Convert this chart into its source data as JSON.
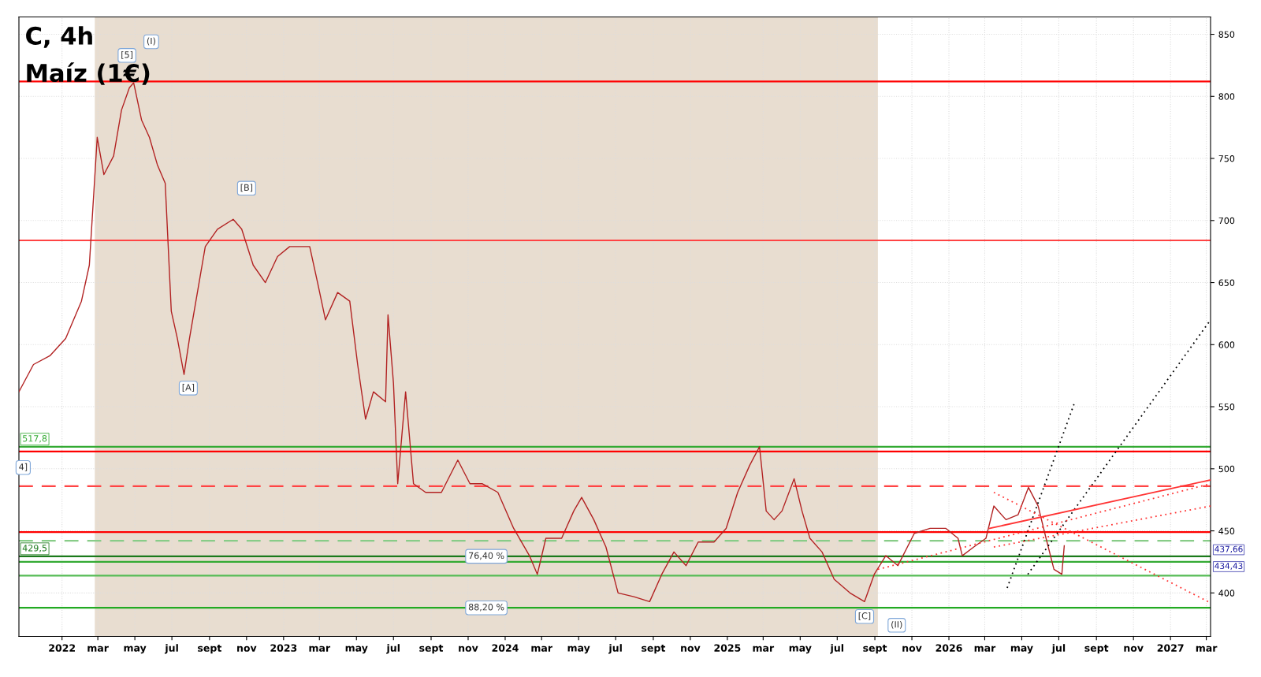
{
  "chart_data": {
    "type": "line",
    "title": "C, 4h",
    "subtitle": "Maíz (1€)",
    "x": [
      "2021-10-22",
      "2021-11-15",
      "2021-12-12",
      "2022-01-07",
      "2022-02-02",
      "2022-02-15",
      "2022-02-28",
      "2022-03-11",
      "2022-03-27",
      "2022-04-09",
      "2022-04-22",
      "2022-04-29",
      "2022-05-12",
      "2022-05-25",
      "2022-06-07",
      "2022-06-20",
      "2022-06-30",
      "2022-07-10",
      "2022-07-21",
      "2022-07-30",
      "2022-08-12",
      "2022-08-25",
      "2022-09-14",
      "2022-10-10",
      "2022-10-24",
      "2022-11-12",
      "2022-12-02",
      "2022-12-22",
      "2023-01-11",
      "2023-02-13",
      "2023-02-26",
      "2023-03-11",
      "2023-03-31",
      "2023-04-20",
      "2023-05-03",
      "2023-05-16",
      "2023-05-29",
      "2023-06-18",
      "2023-06-22",
      "2023-07-01",
      "2023-07-08",
      "2023-07-21",
      "2023-08-03",
      "2023-08-23",
      "2023-09-18",
      "2023-10-15",
      "2023-11-04",
      "2023-11-24",
      "2023-12-20",
      "2024-01-15",
      "2024-02-10",
      "2024-02-23",
      "2024-03-08",
      "2024-04-03",
      "2024-04-23",
      "2024-05-06",
      "2024-05-26",
      "2024-06-15",
      "2024-07-05",
      "2024-07-31",
      "2024-08-26",
      "2024-09-15",
      "2024-10-05",
      "2024-10-25",
      "2024-11-14",
      "2024-12-10",
      "2024-12-30",
      "2025-01-18",
      "2025-02-07",
      "2025-02-23",
      "2025-03-06",
      "2025-03-19",
      "2025-04-01",
      "2025-04-21",
      "2025-05-04",
      "2025-05-17",
      "2025-06-06",
      "2025-06-26",
      "2025-07-22",
      "2025-08-15",
      "2025-08-31",
      "2025-09-19",
      "2025-10-09",
      "2025-11-05",
      "2025-12-01",
      "2025-12-27",
      "2026-01-16",
      "2026-01-23",
      "2026-02-11",
      "2026-03-03",
      "2026-03-16",
      "2026-04-05",
      "2026-04-25",
      "2026-05-12",
      "2026-05-28",
      "2026-06-10",
      "2026-06-23",
      "2026-07-06",
      "2026-07-10"
    ],
    "series": [
      {
        "color": "#b22222",
        "values": [
          562,
          584,
          591,
          605,
          635,
          664,
          767,
          737,
          752,
          789,
          807,
          811,
          781,
          767,
          745,
          730,
          627,
          605,
          576,
          605,
          642,
          679,
          693,
          701,
          693,
          664,
          650,
          671,
          679,
          679,
          650,
          620,
          642,
          635,
          584,
          540,
          562,
          554,
          624,
          569,
          488,
          562,
          488,
          481,
          481,
          507,
          488,
          488,
          481,
          452,
          430,
          415,
          444,
          444,
          466,
          477,
          459,
          437,
          400,
          397,
          393,
          415,
          433,
          422,
          441,
          441,
          452,
          481,
          503,
          517.8,
          466,
          459,
          466,
          492,
          466,
          444,
          433,
          411,
          400,
          393,
          415,
          430,
          422,
          448,
          452,
          452,
          444,
          430,
          437,
          444,
          470,
          459,
          463,
          485,
          470,
          444,
          419,
          415,
          438
        ]
      },
      {
        "type": "line",
        "color": "#000000",
        "line_style": "dotted",
        "x": [
          "2026-04-07",
          "2026-07-26"
        ],
        "values": [
          404,
          552
        ]
      },
      {
        "type": "line",
        "color": "#000000",
        "line_style": "dotted",
        "x": [
          "2026-05-11",
          "2027-03-08"
        ],
        "values": [
          415,
          620
        ]
      },
      {
        "type": "line",
        "color": "#ff3333",
        "line_style": "solid",
        "x": [
          "2026-03-09",
          "2027-03-08"
        ],
        "values": [
          452,
          491
        ]
      },
      {
        "type": "line",
        "color": "#ff3333",
        "line_style": "dotted",
        "x": [
          "2026-03-16",
          "2027-03-08"
        ],
        "values": [
          481,
          392
        ]
      },
      {
        "type": "line",
        "color": "#ff3333",
        "line_style": "dotted",
        "x": [
          "2025-09-06",
          "2027-03-08"
        ],
        "values": [
          419,
          488
        ]
      },
      {
        "type": "line",
        "color": "#ff3333",
        "line_style": "dotted",
        "x": [
          "2026-03-16",
          "2027-03-08"
        ],
        "values": [
          437,
          470
        ]
      }
    ],
    "xlim": [
      "2021-10-22",
      "2027-03-08"
    ],
    "xticks": [
      {
        "value": "2022-01-01",
        "label": "2022"
      },
      {
        "value": "2022-03-01",
        "label": "mar"
      },
      {
        "value": "2022-05-01",
        "label": "may"
      },
      {
        "value": "2022-07-01",
        "label": "jul"
      },
      {
        "value": "2022-09-01",
        "label": "sept"
      },
      {
        "value": "2022-11-01",
        "label": "nov"
      },
      {
        "value": "2023-01-01",
        "label": "2023"
      },
      {
        "value": "2023-03-01",
        "label": "mar"
      },
      {
        "value": "2023-05-01",
        "label": "may"
      },
      {
        "value": "2023-07-01",
        "label": "jul"
      },
      {
        "value": "2023-09-01",
        "label": "sept"
      },
      {
        "value": "2023-11-01",
        "label": "nov"
      },
      {
        "value": "2024-01-01",
        "label": "2024"
      },
      {
        "value": "2024-03-01",
        "label": "mar"
      },
      {
        "value": "2024-05-01",
        "label": "may"
      },
      {
        "value": "2024-07-01",
        "label": "jul"
      },
      {
        "value": "2024-09-01",
        "label": "sept"
      },
      {
        "value": "2024-11-01",
        "label": "nov"
      },
      {
        "value": "2025-01-01",
        "label": "2025"
      },
      {
        "value": "2025-03-01",
        "label": "mar"
      },
      {
        "value": "2025-05-01",
        "label": "may"
      },
      {
        "value": "2025-07-01",
        "label": "jul"
      },
      {
        "value": "2025-09-01",
        "label": "sept"
      },
      {
        "value": "2025-11-01",
        "label": "nov"
      },
      {
        "value": "2026-01-01",
        "label": "2026"
      },
      {
        "value": "2026-03-01",
        "label": "mar"
      },
      {
        "value": "2026-05-01",
        "label": "may"
      },
      {
        "value": "2026-07-01",
        "label": "jul"
      },
      {
        "value": "2026-09-01",
        "label": "sept"
      },
      {
        "value": "2026-11-01",
        "label": "nov"
      },
      {
        "value": "2027-01-01",
        "label": "2027"
      },
      {
        "value": "2027-03-01",
        "label": "mar"
      }
    ],
    "ylim": [
      365,
      864
    ],
    "yticks": [
      400,
      450,
      500,
      550,
      600,
      650,
      700,
      750,
      800,
      850
    ],
    "grid": true,
    "legend": false,
    "ref_lines": [
      {
        "axis": "y",
        "value": 812,
        "color": "#ff0000",
        "line_style": "solid"
      },
      {
        "axis": "y",
        "value": 684,
        "color": "#ff4444",
        "line_style": "solid"
      },
      {
        "axis": "y",
        "value": 517.8,
        "label": "517,8",
        "color": "#33aa33",
        "line_style": "solid"
      },
      {
        "axis": "y",
        "value": 514,
        "color": "#ff0000",
        "line_style": "solid"
      },
      {
        "axis": "y",
        "value": 486,
        "color": "#ff4444",
        "line_style": "dashed"
      },
      {
        "axis": "y",
        "value": 449,
        "color": "#ff0000",
        "line_style": "solid"
      },
      {
        "axis": "y",
        "value": 442,
        "color": "#88cc88",
        "line_style": "dashed"
      },
      {
        "axis": "y",
        "value": 429.5,
        "label": "429,5",
        "color": "#1b7a1b",
        "line_style": "solid"
      },
      {
        "axis": "y",
        "value": 425,
        "color": "#33aa33",
        "line_style": "solid"
      },
      {
        "axis": "y",
        "value": 414,
        "color": "#55bb55",
        "line_style": "solid"
      },
      {
        "axis": "y",
        "value": 388,
        "color": "#22aa22",
        "line_style": "solid"
      }
    ],
    "bands": [
      {
        "axis": "x",
        "from": "2022-02-24",
        "to": "2025-09-06",
        "color": "#e8ddd0"
      }
    ],
    "annotations": [
      {
        "text": "(I)",
        "x": "2022-05-28",
        "y": 844
      },
      {
        "text": "[5]",
        "x": "2022-04-18",
        "y": 833
      },
      {
        "text": "[B]",
        "x": "2022-11-01",
        "y": 726
      },
      {
        "text": "[A]",
        "x": "2022-07-28",
        "y": 565
      },
      {
        "text": "4]",
        "x": "2021-10-29",
        "y": 501
      },
      {
        "text": "[C]",
        "x": "2025-08-15",
        "y": 381
      },
      {
        "text": "(II)",
        "x": "2025-10-07",
        "y": 374
      },
      {
        "text": "76,40 %",
        "x": "2023-12-01",
        "y": 429.5
      },
      {
        "text": "88,20 %",
        "x": "2023-12-01",
        "y": 388
      },
      "437,66",
      "434,43"
    ]
  }
}
